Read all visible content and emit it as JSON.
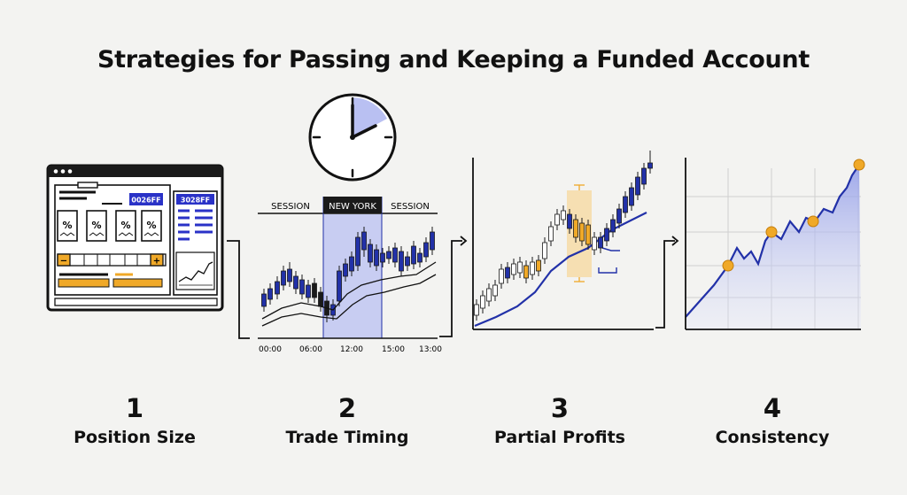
{
  "title": "Strategies for Passing and Keeping a Funded Account",
  "steps": [
    {
      "number": "1",
      "label": "Position Size"
    },
    {
      "number": "2",
      "label": "Trade Timing"
    },
    {
      "number": "3",
      "label": "Partial Profits"
    },
    {
      "number": "4",
      "label": "Consistency"
    }
  ],
  "panel1": {
    "badge_left": "0026FF",
    "badge_right": "3028FF",
    "percent_symbol": "%",
    "minus_symbol": "−",
    "plus_symbol": "+"
  },
  "panel2": {
    "session_left": "SESSION",
    "session_active": "NEW YORK",
    "session_right": "SESSION",
    "times": [
      "00:00",
      "06:00",
      "12:00",
      "15:00",
      "13:00"
    ]
  },
  "colors": {
    "accent_blue": "#2231a8",
    "highlight_blue": "#b9c0f2",
    "accent_orange": "#f0a928",
    "dark": "#1a1a1a"
  },
  "icons": [
    "clock-icon",
    "window-dots-icon",
    "percent-icon"
  ]
}
